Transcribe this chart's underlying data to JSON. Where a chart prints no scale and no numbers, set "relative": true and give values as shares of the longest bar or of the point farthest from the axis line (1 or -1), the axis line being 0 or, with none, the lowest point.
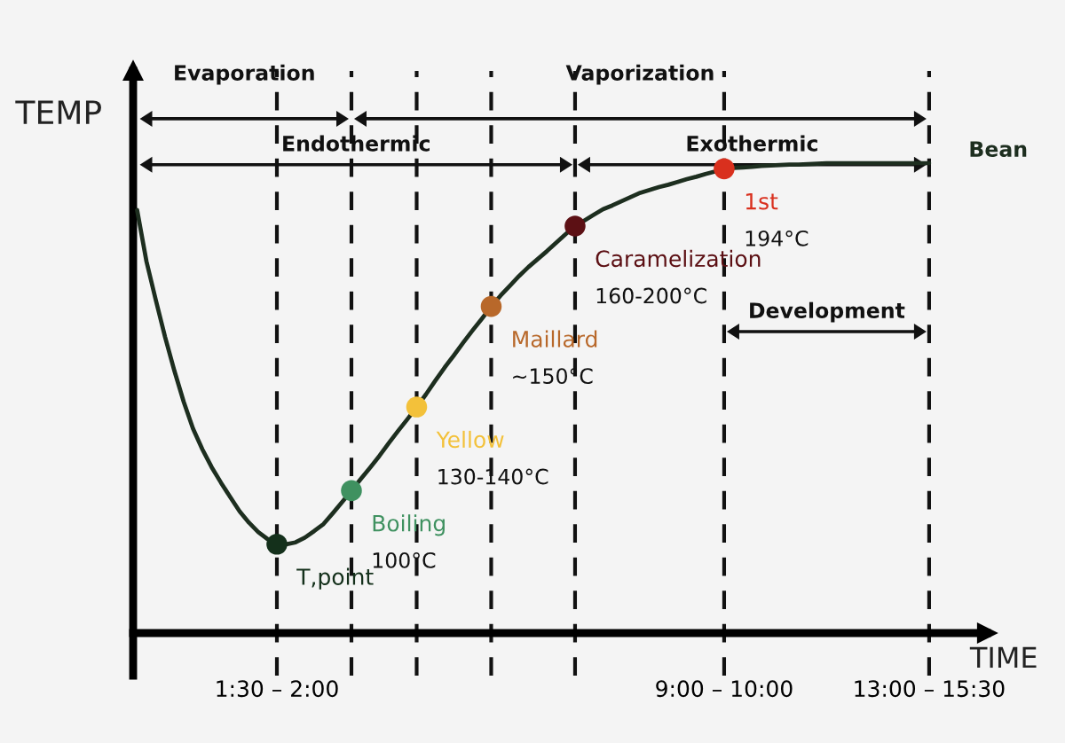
{
  "chart_data": {
    "type": "line",
    "xlabel": "TIME",
    "ylabel": "TEMP",
    "relative": true,
    "grid": "x",
    "categories": [
      null,
      null,
      null,
      null,
      null,
      null,
      null,
      null,
      null,
      null,
      null,
      null,
      null,
      null,
      null,
      "1:30 – 2:00",
      null,
      null,
      null,
      null,
      null,
      null,
      null,
      null,
      null,
      null,
      null,
      null,
      null,
      null,
      null,
      null,
      null,
      null,
      null,
      null,
      null,
      null,
      null,
      null,
      null,
      null,
      null,
      null,
      null,
      null,
      null,
      null,
      null,
      null,
      null,
      null,
      null,
      null,
      null,
      null,
      null,
      null,
      null,
      null,
      null,
      null,
      null,
      "9:00 – 10:00",
      null,
      null,
      null,
      null,
      null,
      null,
      null,
      null,
      null,
      null,
      null,
      null,
      null,
      null,
      null,
      null,
      null,
      null,
      null,
      null,
      null,
      "13:00 – 15:30"
    ],
    "series": [
      {
        "name": "Bean",
        "color": "#1d2e1f",
        "values": [
          0.9,
          0.791,
          0.709,
          0.63,
          0.558,
          0.492,
          0.435,
          0.391,
          0.353,
          0.32,
          0.289,
          0.259,
          0.235,
          0.215,
          0.2,
          0.189,
          0.189,
          0.193,
          0.203,
          0.217,
          0.232,
          0.255,
          0.279,
          0.303,
          0.328,
          0.352,
          0.377,
          0.404,
          0.43,
          0.455,
          0.481,
          0.508,
          0.537,
          0.565,
          0.591,
          0.618,
          0.644,
          0.669,
          0.695,
          0.718,
          0.739,
          0.76,
          0.779,
          0.796,
          0.813,
          0.831,
          0.849,
          0.866,
          0.878,
          0.89,
          0.902,
          0.91,
          0.919,
          0.928,
          0.937,
          0.943,
          0.949,
          0.954,
          0.96,
          0.966,
          0.971,
          0.977,
          0.982,
          0.988,
          0.99,
          0.991,
          0.992,
          0.994,
          0.995,
          0.996,
          0.997,
          0.997,
          0.998,
          0.999,
          1.0,
          1.0,
          1.0,
          1.0,
          1.0,
          1.0,
          1.0,
          1.0,
          1.0,
          1.0,
          1.0,
          1.0
        ]
      },
      {
        "name": "T,point",
        "type": "scatter",
        "marker": "circle",
        "color": "#14301b",
        "values": [
          null,
          null,
          null,
          null,
          null,
          null,
          null,
          null,
          null,
          null,
          null,
          null,
          null,
          null,
          null,
          0.189,
          null,
          null,
          null,
          null,
          null,
          null,
          null,
          null,
          null,
          null,
          null,
          null,
          null,
          null,
          null,
          null,
          null,
          null,
          null,
          null,
          null,
          null,
          null,
          null,
          null,
          null,
          null,
          null,
          null,
          null,
          null,
          null,
          null,
          null,
          null,
          null,
          null,
          null,
          null,
          null,
          null,
          null,
          null,
          null,
          null,
          null,
          null,
          null,
          null,
          null,
          null,
          null,
          null,
          null,
          null,
          null,
          null,
          null,
          null,
          null,
          null,
          null,
          null,
          null,
          null,
          null,
          null,
          null,
          null,
          null
        ]
      },
      {
        "name": "Boiling\n100°C",
        "type": "scatter",
        "marker": "circle",
        "color": "#3f9160",
        "values": [
          null,
          null,
          null,
          null,
          null,
          null,
          null,
          null,
          null,
          null,
          null,
          null,
          null,
          null,
          null,
          null,
          null,
          null,
          null,
          null,
          null,
          null,
          null,
          0.303,
          null,
          null,
          null,
          null,
          null,
          null,
          null,
          null,
          null,
          null,
          null,
          null,
          null,
          null,
          null,
          null,
          null,
          null,
          null,
          null,
          null,
          null,
          null,
          null,
          null,
          null,
          null,
          null,
          null,
          null,
          null,
          null,
          null,
          null,
          null,
          null,
          null,
          null,
          null,
          null,
          null,
          null,
          null,
          null,
          null,
          null,
          null,
          null,
          null,
          null,
          null,
          null,
          null,
          null,
          null,
          null,
          null,
          null,
          null,
          null,
          null,
          null
        ]
      },
      {
        "name": "Yellow\n130-140°C",
        "type": "scatter",
        "marker": "circle",
        "color": "#f3c13a",
        "values": [
          null,
          null,
          null,
          null,
          null,
          null,
          null,
          null,
          null,
          null,
          null,
          null,
          null,
          null,
          null,
          null,
          null,
          null,
          null,
          null,
          null,
          null,
          null,
          null,
          null,
          null,
          null,
          null,
          null,
          null,
          0.481,
          null,
          null,
          null,
          null,
          null,
          null,
          null,
          null,
          null,
          null,
          null,
          null,
          null,
          null,
          null,
          null,
          null,
          null,
          null,
          null,
          null,
          null,
          null,
          null,
          null,
          null,
          null,
          null,
          null,
          null,
          null,
          null,
          null,
          null,
          null,
          null,
          null,
          null,
          null,
          null,
          null,
          null,
          null,
          null,
          null,
          null,
          null,
          null,
          null,
          null,
          null,
          null,
          null,
          null,
          null
        ]
      },
      {
        "name": "Maillard\n~150°C",
        "type": "scatter",
        "marker": "circle",
        "color": "#b8682a",
        "values": [
          null,
          null,
          null,
          null,
          null,
          null,
          null,
          null,
          null,
          null,
          null,
          null,
          null,
          null,
          null,
          null,
          null,
          null,
          null,
          null,
          null,
          null,
          null,
          null,
          null,
          null,
          null,
          null,
          null,
          null,
          null,
          null,
          null,
          null,
          null,
          null,
          null,
          null,
          0.695,
          null,
          null,
          null,
          null,
          null,
          null,
          null,
          null,
          null,
          null,
          null,
          null,
          null,
          null,
          null,
          null,
          null,
          null,
          null,
          null,
          null,
          null,
          null,
          null,
          null,
          null,
          null,
          null,
          null,
          null,
          null,
          null,
          null,
          null,
          null,
          null,
          null,
          null,
          null,
          null,
          null,
          null,
          null,
          null,
          null,
          null,
          null
        ]
      },
      {
        "name": "Caramelization\n160-200°C",
        "type": "scatter",
        "marker": "circle",
        "color": "#5c1014",
        "values": [
          null,
          null,
          null,
          null,
          null,
          null,
          null,
          null,
          null,
          null,
          null,
          null,
          null,
          null,
          null,
          null,
          null,
          null,
          null,
          null,
          null,
          null,
          null,
          null,
          null,
          null,
          null,
          null,
          null,
          null,
          null,
          null,
          null,
          null,
          null,
          null,
          null,
          null,
          null,
          null,
          null,
          null,
          null,
          null,
          null,
          null,
          null,
          0.866,
          null,
          null,
          null,
          null,
          null,
          null,
          null,
          null,
          null,
          null,
          null,
          null,
          null,
          null,
          null,
          null,
          null,
          null,
          null,
          null,
          null,
          null,
          null,
          null,
          null,
          null,
          null,
          null,
          null,
          null,
          null,
          null,
          null,
          null,
          null,
          null,
          null,
          null
        ]
      },
      {
        "name": "1st\n194°C",
        "type": "scatter",
        "marker": "circle",
        "color": "#d9301e",
        "values": [
          null,
          null,
          null,
          null,
          null,
          null,
          null,
          null,
          null,
          null,
          null,
          null,
          null,
          null,
          null,
          null,
          null,
          null,
          null,
          null,
          null,
          null,
          null,
          null,
          null,
          null,
          null,
          null,
          null,
          null,
          null,
          null,
          null,
          null,
          null,
          null,
          null,
          null,
          null,
          null,
          null,
          null,
          null,
          null,
          null,
          null,
          null,
          null,
          null,
          null,
          null,
          null,
          null,
          null,
          null,
          null,
          null,
          null,
          null,
          null,
          null,
          null,
          null,
          0.988,
          null,
          null,
          null,
          null,
          null,
          null,
          null,
          null,
          null,
          null,
          null,
          null,
          null,
          null,
          null,
          null,
          null,
          null,
          null,
          null,
          null,
          null
        ]
      }
    ],
    "annotations": [
      "Evaporation",
      "Vaporization",
      "Endothermic",
      "Exothermic",
      "Development"
    ]
  }
}
